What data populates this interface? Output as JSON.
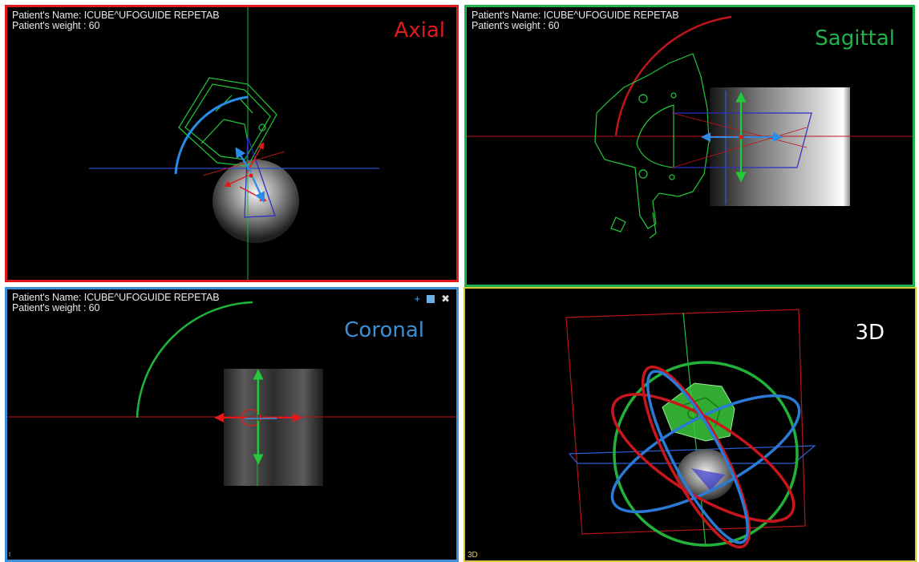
{
  "viewports": {
    "axial": {
      "label": "Axial",
      "label_color": "#e0191d",
      "patient_name": "Patient's Name: ICUBE^UFOGUIDE REPETAB",
      "patient_weight": "Patient's weight : 60"
    },
    "sagittal": {
      "label": "Sagittal",
      "label_color": "#22b24c",
      "patient_name": "Patient's Name: ICUBE^UFOGUIDE REPETAB",
      "patient_weight": "Patient's weight : 60"
    },
    "coronal": {
      "label": "Coronal",
      "label_color": "#3a8fd6",
      "patient_name": "Patient's Name: ICUBE^UFOGUIDE REPETAB",
      "patient_weight": "Patient's weight : 60",
      "tools": {
        "add": "+",
        "layout": "■",
        "settings": "✖"
      },
      "corner": "t"
    },
    "view3d": {
      "label": "3D",
      "label_color": "#ffffff",
      "corner": "3D"
    }
  },
  "colors": {
    "axial": "#e0191d",
    "sagittal": "#22b24c",
    "coronal": "#3a8fd6",
    "view3d": "#d6c83a"
  },
  "icons": {
    "add": "plus-icon",
    "layout": "square-layout-icon",
    "settings": "tools-icon"
  }
}
